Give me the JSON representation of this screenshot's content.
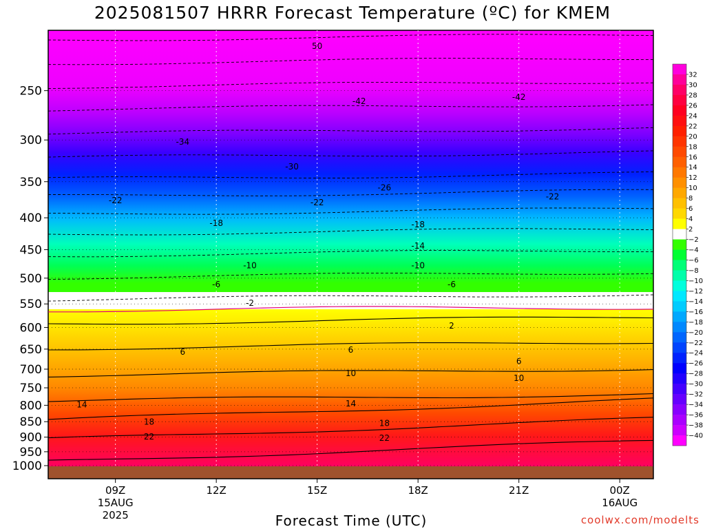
{
  "chart_data": {
    "type": "heatmap",
    "title": "2025081507 HRRR Forecast Temperature (ºC) for KMEM",
    "xlabel": "Forecast Time (UTC)",
    "ylabel": "",
    "credit": "coolwx.com/modelts",
    "y_scale": "log-pressure",
    "y_range_hPa": [
      1000,
      200
    ],
    "y_ticks": [
      250,
      300,
      350,
      400,
      450,
      500,
      550,
      600,
      650,
      700,
      750,
      800,
      850,
      900,
      950,
      1000
    ],
    "x_range_utc": [
      "2025-08-15T07:00Z",
      "2025-08-16T01:00Z"
    ],
    "x_ticks": [
      {
        "time": "2025-08-15T09:00Z",
        "lines": [
          "09Z",
          "15AUG",
          "2025"
        ]
      },
      {
        "time": "2025-08-15T12:00Z",
        "lines": [
          "12Z"
        ]
      },
      {
        "time": "2025-08-15T15:00Z",
        "lines": [
          "15Z"
        ]
      },
      {
        "time": "2025-08-15T18:00Z",
        "lines": [
          "18Z"
        ]
      },
      {
        "time": "2025-08-15T21:00Z",
        "lines": [
          "21Z"
        ]
      },
      {
        "time": "2025-08-16T00:00Z",
        "lines": [
          "00Z",
          "16AUG"
        ]
      }
    ],
    "grid": "dotted",
    "colorbar": {
      "units": "°C",
      "levels": [
        "32",
        "30",
        "28",
        "26",
        "24",
        "22",
        "20",
        "18",
        "16",
        "14",
        "12",
        "10",
        "8",
        "6",
        "4",
        "2",
        "−2",
        "−4",
        "−6",
        "−8",
        "−10",
        "−12",
        "−14",
        "−16",
        "−18",
        "−20",
        "−22",
        "−24",
        "−26",
        "−28",
        "−30",
        "−32",
        "−34",
        "−36",
        "−38",
        "−40"
      ],
      "colors": [
        "#ff00dd",
        "#ff0099",
        "#ff0066",
        "#ff0040",
        "#ff0020",
        "#ff1010",
        "#ff2000",
        "#ff3500",
        "#ff4a00",
        "#ff6000",
        "#ff7800",
        "#ff9000",
        "#ffa800",
        "#ffc000",
        "#ffd800",
        "#ffff00",
        "#ffffff",
        "#33ff00",
        "#00ff33",
        "#00ff77",
        "#00ffaa",
        "#00ffdd",
        "#00e8ff",
        "#00ccff",
        "#00a8ff",
        "#0088ff",
        "#0066ff",
        "#0044ff",
        "#0022ff",
        "#0000ff",
        "#2200ff",
        "#4400ff",
        "#6600ff",
        "#8800ff",
        "#aa00ff",
        "#cc00ff",
        "#ff00ff"
      ]
    },
    "contour_labels": [
      {
        "value": "50",
        "time": "2025-08-15T15:00Z",
        "pressure": 212
      },
      {
        "value": "-42",
        "time": "2025-08-15T16:15Z",
        "pressure": 260
      },
      {
        "value": "-42",
        "time": "2025-08-15T21:00Z",
        "pressure": 256
      },
      {
        "value": "-34",
        "time": "2025-08-15T11:00Z",
        "pressure": 302
      },
      {
        "value": "-30",
        "time": "2025-08-15T14:15Z",
        "pressure": 331
      },
      {
        "value": "-26",
        "time": "2025-08-15T17:00Z",
        "pressure": 358
      },
      {
        "value": "-22",
        "time": "2025-08-15T09:00Z",
        "pressure": 375
      },
      {
        "value": "-22",
        "time": "2025-08-15T15:00Z",
        "pressure": 378
      },
      {
        "value": "-22",
        "time": "2025-08-15T22:00Z",
        "pressure": 370
      },
      {
        "value": "-18",
        "time": "2025-08-15T12:00Z",
        "pressure": 408
      },
      {
        "value": "-18",
        "time": "2025-08-15T18:00Z",
        "pressure": 410
      },
      {
        "value": "-14",
        "time": "2025-08-15T18:00Z",
        "pressure": 444
      },
      {
        "value": "-10",
        "time": "2025-08-15T13:00Z",
        "pressure": 477
      },
      {
        "value": "-10",
        "time": "2025-08-15T18:00Z",
        "pressure": 477
      },
      {
        "value": "-6",
        "time": "2025-08-15T12:00Z",
        "pressure": 512
      },
      {
        "value": "-6",
        "time": "2025-08-15T19:00Z",
        "pressure": 512
      },
      {
        "value": "-2",
        "time": "2025-08-15T13:00Z",
        "pressure": 548
      },
      {
        "value": "2",
        "time": "2025-08-15T19:00Z",
        "pressure": 596
      },
      {
        "value": "6",
        "time": "2025-08-15T11:00Z",
        "pressure": 657
      },
      {
        "value": "6",
        "time": "2025-08-15T16:00Z",
        "pressure": 652
      },
      {
        "value": "6",
        "time": "2025-08-15T21:00Z",
        "pressure": 680
      },
      {
        "value": "10",
        "time": "2025-08-15T16:00Z",
        "pressure": 711
      },
      {
        "value": "10",
        "time": "2025-08-15T21:00Z",
        "pressure": 724
      },
      {
        "value": "14",
        "time": "2025-08-15T08:00Z",
        "pressure": 798
      },
      {
        "value": "14",
        "time": "2025-08-15T16:00Z",
        "pressure": 795
      },
      {
        "value": "18",
        "time": "2025-08-15T10:00Z",
        "pressure": 851
      },
      {
        "value": "18",
        "time": "2025-08-15T17:00Z",
        "pressure": 855
      },
      {
        "value": "22",
        "time": "2025-08-15T10:00Z",
        "pressure": 898
      },
      {
        "value": "22",
        "time": "2025-08-15T17:00Z",
        "pressure": 903
      }
    ]
  }
}
